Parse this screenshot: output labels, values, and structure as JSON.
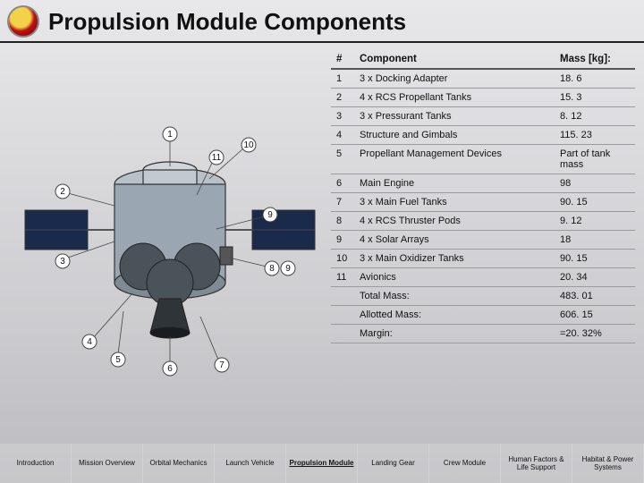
{
  "title": "Propulsion Module Components",
  "table": {
    "columns": [
      "#",
      "Component",
      "Mass [kg]:"
    ],
    "rows": [
      [
        "1",
        "3 x Docking Adapter",
        "18. 6"
      ],
      [
        "2",
        "4 x RCS Propellant Tanks",
        "15. 3"
      ],
      [
        "3",
        "3 x Pressurant Tanks",
        "8. 12"
      ],
      [
        "4",
        "Structure and Gimbals",
        "115. 23"
      ],
      [
        "5",
        "Propellant Management Devices",
        "Part of tank mass"
      ],
      [
        "6",
        "Main Engine",
        "98"
      ],
      [
        "7",
        "3 x Main Fuel Tanks",
        "90. 15"
      ],
      [
        "8",
        "4 x RCS Thruster Pods",
        "9. 12"
      ],
      [
        "9",
        "4 x Solar Arrays",
        "18"
      ],
      [
        "10",
        "3 x Main Oxidizer Tanks",
        "90. 15"
      ],
      [
        "11",
        "Avionics",
        "20. 34"
      ]
    ],
    "summary": [
      [
        "",
        "Total Mass:",
        "483. 01"
      ],
      [
        "",
        "Allotted Mass:",
        "606. 15"
      ],
      [
        "",
        "Margin:",
        "=20. 32%"
      ]
    ]
  },
  "nav": {
    "items": [
      "Introduction",
      "Mission Overview",
      "Orbital Mechanics",
      "Launch Vehicle",
      "Propulsion Module",
      "Landing Gear",
      "Crew Module",
      "Human Factors & Life Support",
      "Habitat & Power Systems"
    ],
    "active_index": 4
  },
  "diagram": {
    "callouts": [
      1,
      2,
      3,
      4,
      5,
      6,
      7,
      8,
      9,
      10,
      11
    ],
    "body_color": "#9aa6b2",
    "panel_color": "#1a2a4a",
    "tank_color": "#6b7580",
    "outline_color": "#333"
  },
  "colors": {
    "text": "#111111",
    "rule": "#9a9aa0",
    "header_rule": "#555555",
    "bg_top": "#e8e8ea",
    "bg_bottom": "#c0c0c3"
  },
  "fonts": {
    "title_size_pt": 20,
    "table_size_pt": 8.5,
    "nav_size_pt": 6
  }
}
